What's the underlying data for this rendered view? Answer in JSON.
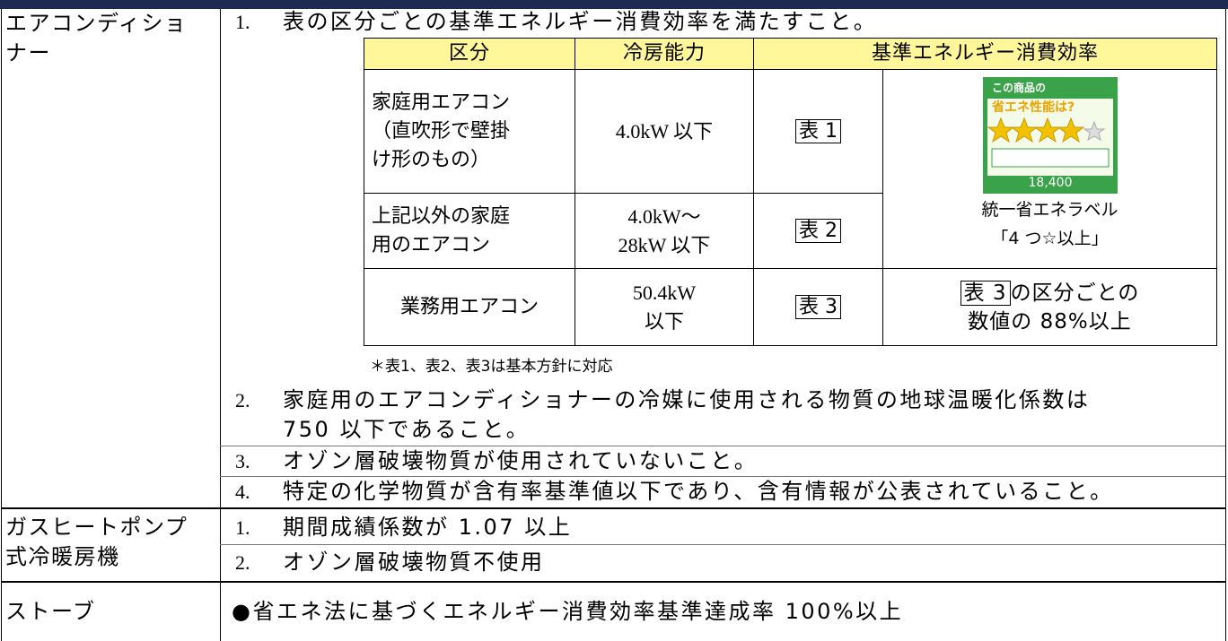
{
  "table": {
    "rows": [
      {
        "label": "エアコンディショナー",
        "items": [
          {
            "number": "1.",
            "text": "表の区分ごとの基準エネルギー消費効率を満たすこと。"
          },
          {
            "number": "2.",
            "text": "家庭用のエアコンディショナーの冷媒に使用される物質の地球温暖化係数は750 以下であること。"
          },
          {
            "number": "3.",
            "text": "オゾン層破壊物質が使用されていないこと。"
          },
          {
            "number": "4.",
            "text": "特定の化学物質が含有率基準値以下であり、含有情報が公表されていること。"
          }
        ],
        "subtable": {
          "header": [
            "区分",
            "冷房能力",
            "基準エネルギー消費効率"
          ],
          "rows": [
            {
              "category": "家庭用エアコン（直吹形で壁掛け形のもの）",
              "capacity": "4.0kW 以下",
              "ref": "表 1"
            },
            {
              "category": "上記以外の家庭用のエアコン",
              "capacity": "4.0kW～28kW 以下",
              "ref": "表 2"
            },
            {
              "category": "業務用エアコン",
              "capacity": "50.4kW 以下",
              "ref": "表 3"
            }
          ],
          "label_image": {
            "title1": "この商品の",
            "title2": "省エネ性能は?",
            "amount": "18,400"
          },
          "label_caption": "統一省エネラベル",
          "label_condition": "「4 つ☆以上」",
          "last_ref": "表 3",
          "last_text1": "の区分ごとの",
          "last_text2": "数値の 88%以上"
        },
        "note": "＊表1、表2、表3は基本方針に対応"
      },
      {
        "label": "ガスヒートポンプ式冷暖房機",
        "items": [
          {
            "number": "1.",
            "text": "期間成績係数が 1.07 以上"
          },
          {
            "number": "2.",
            "text": "オゾン層破壊物質不使用"
          }
        ]
      },
      {
        "label": "ストーブ",
        "text": "●省エネ法に基づくエネルギー消費効率基準達成率 100%以上"
      }
    ]
  }
}
